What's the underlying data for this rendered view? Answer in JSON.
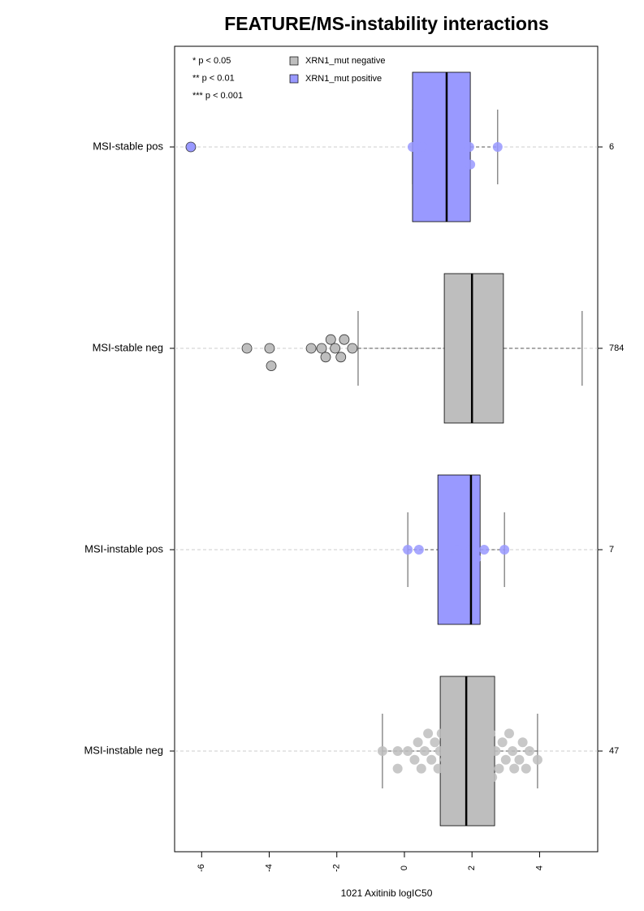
{
  "chart_data": {
    "type": "boxplot",
    "title": "FEATURE/MS-instability interactions",
    "x_label": "1021 Axitinib logIC50",
    "xlim": [
      -6.8,
      5.72
    ],
    "xticks": [
      -6,
      -4,
      -2,
      0,
      2,
      4
    ],
    "categories": [
      "MSI-stable pos",
      "MSI-stable neg",
      "MSI-instable pos",
      "MSI-instable neg"
    ],
    "counts": [
      6,
      784,
      7,
      47
    ],
    "significance_legend": [
      "* p < 0.05",
      "** p < 0.01",
      "*** p < 0.001"
    ],
    "series": [
      {
        "name": "XRN1_mut negative",
        "color": "#bebebe",
        "boxes": [
          null,
          {
            "whisker_low": -1.37,
            "q1": 1.18,
            "median": 2.0,
            "q3": 2.93,
            "whisker_high": 5.26,
            "points": [
              -4.66,
              -3.99,
              -3.94,
              -2.76,
              -2.45,
              -2.33,
              -2.18,
              -2.05,
              -1.88,
              -1.78,
              -1.54
            ]
          },
          null,
          {
            "whisker_low": -0.65,
            "q1": 1.06,
            "median": 1.83,
            "q3": 2.67,
            "whisker_high": 3.94,
            "points": [
              -0.65,
              -0.2,
              -0.2,
              0.1,
              0.3,
              0.4,
              0.5,
              0.6,
              0.7,
              0.8,
              0.9,
              1.0,
              1.05,
              1.1,
              1.2,
              1.25,
              1.3,
              1.4,
              1.45,
              1.5,
              1.6,
              1.7,
              1.75,
              1.8,
              1.85,
              1.9,
              2.0,
              2.05,
              2.1,
              2.2,
              2.3,
              2.4,
              2.5,
              2.55,
              2.6,
              2.7,
              2.8,
              2.9,
              3.0,
              3.1,
              3.2,
              3.25,
              3.4,
              3.5,
              3.6,
              3.7,
              3.94
            ]
          }
        ]
      },
      {
        "name": "XRN1_mut positive",
        "color": "#9999ff",
        "boxes": [
          {
            "whisker_low": 0.24,
            "q1": 0.24,
            "median": 1.25,
            "q3": 1.95,
            "whisker_high": 2.76,
            "points": [
              -6.32,
              0.24,
              0.53,
              1.92,
              1.95,
              2.76
            ]
          },
          null,
          {
            "whisker_low": 0.1,
            "q1": 0.99,
            "median": 1.97,
            "q3": 2.24,
            "whisker_high": 2.96,
            "points": [
              0.1,
              0.43,
              1.54,
              1.97,
              2.12,
              2.36,
              2.96
            ]
          },
          null
        ]
      }
    ]
  }
}
